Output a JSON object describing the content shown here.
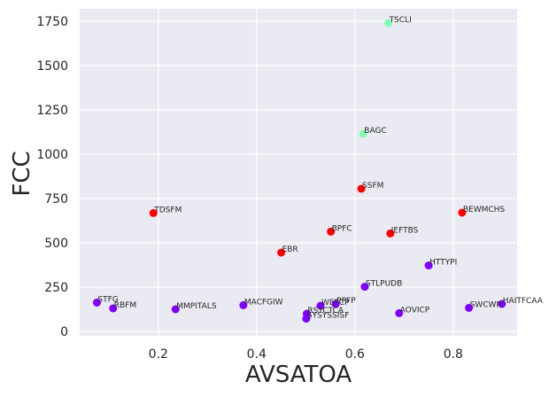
{
  "chart_data": {
    "type": "scatter",
    "title": "",
    "xlabel": "AVSATOA",
    "ylabel": "FCC",
    "xlim": [
      0.04,
      0.93
    ],
    "ylim": [
      -25,
      1820
    ],
    "xticks": [
      {
        "value": 0.2,
        "label": "0.2"
      },
      {
        "value": 0.4,
        "label": "0.4"
      },
      {
        "value": 0.6,
        "label": "0.6"
      },
      {
        "value": 0.8,
        "label": "0.8"
      }
    ],
    "yticks": [
      {
        "value": 0,
        "label": "0"
      },
      {
        "value": 250,
        "label": "250"
      },
      {
        "value": 500,
        "label": "500"
      },
      {
        "value": 750,
        "label": "750"
      },
      {
        "value": 1000,
        "label": "1000"
      },
      {
        "value": 1250,
        "label": "1250"
      },
      {
        "value": 1500,
        "label": "1500"
      },
      {
        "value": 1750,
        "label": "1750"
      }
    ],
    "grid": true,
    "points": [
      {
        "label": "TSCLI",
        "x": 0.668,
        "y": 1740,
        "color": "#80ffb4"
      },
      {
        "label": "BAGC",
        "x": 0.617,
        "y": 1115,
        "color": "#80ffb4"
      },
      {
        "label": "SSFM",
        "x": 0.613,
        "y": 805,
        "color": "#ff0000"
      },
      {
        "label": "TDSFM",
        "x": 0.19,
        "y": 668,
        "color": "#ff0000"
      },
      {
        "label": "BEWMCHS",
        "x": 0.818,
        "y": 670,
        "color": "#ff0000"
      },
      {
        "label": "BPFC",
        "x": 0.551,
        "y": 563,
        "color": "#ff0000"
      },
      {
        "label": "IEFTBS",
        "x": 0.672,
        "y": 553,
        "color": "#ff0000"
      },
      {
        "label": "EBR",
        "x": 0.45,
        "y": 445,
        "color": "#ff0000"
      },
      {
        "label": "HTTYPI",
        "x": 0.75,
        "y": 372,
        "color": "#8000ff"
      },
      {
        "label": "STLPUDB",
        "x": 0.62,
        "y": 252,
        "color": "#8000ff"
      },
      {
        "label": "STFG",
        "x": 0.075,
        "y": 163,
        "color": "#8000ff"
      },
      {
        "label": "RBFM",
        "x": 0.108,
        "y": 130,
        "color": "#8000ff"
      },
      {
        "label": "MMPITALS",
        "x": 0.235,
        "y": 125,
        "color": "#8000ff"
      },
      {
        "label": "MACFGIW",
        "x": 0.373,
        "y": 148,
        "color": "#8000ff"
      },
      {
        "label": "WEFCP",
        "x": 0.53,
        "y": 145,
        "color": "#8000ff"
      },
      {
        "label": "PPFP",
        "x": 0.561,
        "y": 155,
        "color": "#8000ff"
      },
      {
        "label": "RSYCTCA",
        "x": 0.502,
        "y": 100,
        "color": "#8000ff"
      },
      {
        "label": "SYSYSSISF",
        "x": 0.501,
        "y": 72,
        "color": "#8000ff"
      },
      {
        "label": "AOVICP",
        "x": 0.69,
        "y": 103,
        "color": "#8000ff"
      },
      {
        "label": "SWCWR",
        "x": 0.832,
        "y": 133,
        "color": "#8000ff"
      },
      {
        "label": "HAITFCAA",
        "x": 0.899,
        "y": 155,
        "color": "#8000ff"
      }
    ]
  }
}
